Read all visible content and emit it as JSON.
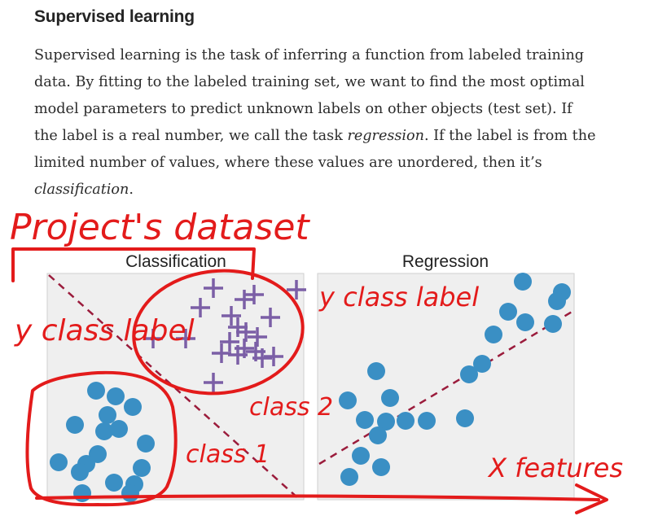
{
  "article": {
    "heading": "Supervised learning",
    "paragraph": {
      "l1": "Supervised learning is the task of inferring a function from labeled training",
      "l2": "data. By fitting to the labeled training set, we want to find the most optimal",
      "l3": "model parameters to predict unknown labels on other objects (test set). If",
      "l4_pre": "the label is a real number, we call the task ",
      "l4_em": "regression",
      "l4_post": ". If the label is from the",
      "l5": "limited number of values, where these values are unordered, then it’s",
      "l6_em": "classification",
      "l6_post": "."
    }
  },
  "figure": {
    "classification_title": "Classification",
    "regression_title": "Regression",
    "colors": {
      "panel": "#efefef",
      "panel_border": "#cfcfcf",
      "dot": "#3a8fc4",
      "plus": "#7b5fa6",
      "dashed_line": "#9b1c3c",
      "ink": "#e31b1b"
    },
    "annotations": {
      "dataset": "Project's dataset",
      "y_class_label_left": "y class label",
      "y_class_label_right": "y class label",
      "class_1": "class 1",
      "class_2": "class 2",
      "x_features": "X features"
    }
  }
}
